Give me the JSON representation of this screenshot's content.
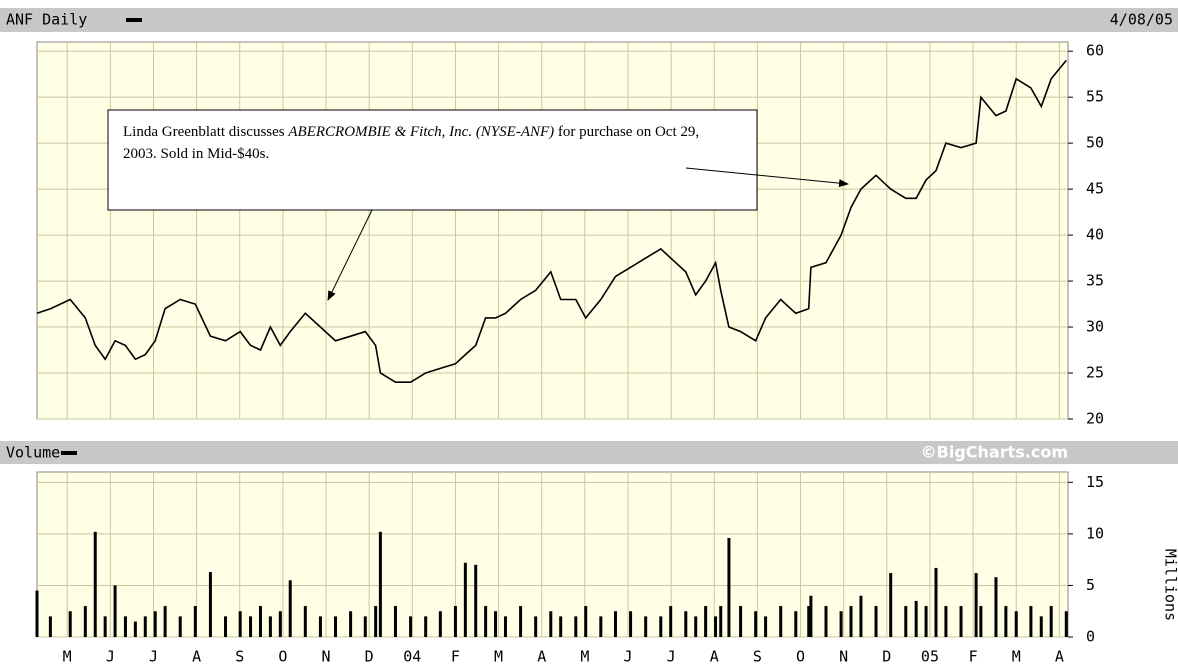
{
  "chart_data": [
    {
      "type": "line",
      "title": "ANF Daily",
      "date": "4/08/05",
      "color": "#000000",
      "annotation": [
        "Linda Greenblatt discusses ",
        "ABERCROMBIE & Fitch, Inc. (NYSE-ANF)",
        " for purchase on Oct 29, 2003.   Sold in Mid-$40s."
      ],
      "xlim": [
        -0.7,
        23.2
      ],
      "x": [
        -0.7,
        -0.39,
        0.07,
        0.42,
        0.65,
        0.88,
        1.11,
        1.35,
        1.58,
        1.81,
        2.04,
        2.27,
        2.62,
        2.97,
        3.32,
        3.67,
        4.01,
        4.25,
        4.48,
        4.71,
        4.94,
        5.17,
        5.52,
        5.87,
        6.22,
        6.57,
        6.91,
        7.15,
        7.26,
        7.61,
        7.96,
        8.31,
        8.65,
        9.0,
        9.23,
        9.47,
        9.7,
        9.93,
        10.16,
        10.51,
        10.86,
        11.21,
        11.44,
        11.79,
        12.02,
        12.37,
        12.71,
        13.06,
        13.41,
        13.76,
        13.99,
        14.34,
        14.57,
        14.8,
        15.03,
        15.15,
        15.34,
        15.61,
        15.96,
        16.19,
        16.54,
        16.89,
        17.19,
        17.24,
        17.59,
        17.94,
        18.17,
        18.4,
        18.75,
        19.09,
        19.44,
        19.68,
        19.91,
        20.14,
        20.37,
        20.72,
        21.07,
        21.18,
        21.53,
        21.76,
        22.0,
        22.34,
        22.58,
        22.81,
        23.16
      ],
      "values": [
        31.5,
        32,
        33,
        31,
        28,
        26.5,
        28.5,
        28,
        26.5,
        27,
        28.5,
        32,
        33,
        32.5,
        29,
        28.5,
        29.5,
        28,
        27.5,
        30,
        28,
        29.5,
        31.5,
        30,
        28.5,
        29,
        29.5,
        28,
        25,
        24,
        24,
        25,
        25.5,
        26,
        27,
        28,
        31,
        31,
        31.5,
        33,
        34,
        36,
        33,
        33,
        31,
        33,
        35.5,
        36.5,
        37.5,
        38.5,
        37.5,
        36,
        33.5,
        35,
        37,
        34,
        30,
        29.5,
        28.5,
        31,
        33,
        31.5,
        32,
        36.5,
        37,
        40,
        43,
        45,
        46.5,
        45,
        44,
        44,
        46,
        47,
        50,
        49.5,
        50,
        55,
        53,
        53.5,
        57,
        56,
        54,
        57,
        59
      ],
      "ylim": [
        20,
        61
      ],
      "yticks": [
        20,
        25,
        30,
        35,
        40,
        45,
        50,
        55,
        60
      ]
    },
    {
      "type": "bar",
      "title": "Volume",
      "source": "©BigCharts.com",
      "y_label": "Millions",
      "color": "#000000",
      "xlim": [
        -0.7,
        23.2
      ],
      "xticks": [
        {
          "value": 0,
          "label": "M"
        },
        {
          "value": 1,
          "label": "J"
        },
        {
          "value": 2,
          "label": "J"
        },
        {
          "value": 3,
          "label": "A"
        },
        {
          "value": 4,
          "label": "S"
        },
        {
          "value": 5,
          "label": "O"
        },
        {
          "value": 6,
          "label": "N"
        },
        {
          "value": 7,
          "label": "D"
        },
        {
          "value": 8,
          "label": "04"
        },
        {
          "value": 9,
          "label": "F"
        },
        {
          "value": 10,
          "label": "M"
        },
        {
          "value": 11,
          "label": "A"
        },
        {
          "value": 12,
          "label": "M"
        },
        {
          "value": 13,
          "label": "J"
        },
        {
          "value": 14,
          "label": "J"
        },
        {
          "value": 15,
          "label": "A"
        },
        {
          "value": 16,
          "label": "S"
        },
        {
          "value": 17,
          "label": "O"
        },
        {
          "value": 18,
          "label": "N"
        },
        {
          "value": 19,
          "label": "D"
        },
        {
          "value": 20,
          "label": "05"
        },
        {
          "value": 21,
          "label": "F"
        },
        {
          "value": 22,
          "label": "M"
        },
        {
          "value": 23,
          "label": "A"
        }
      ],
      "x": [
        -0.7,
        -0.39,
        0.07,
        0.42,
        0.65,
        0.88,
        1.11,
        1.35,
        1.58,
        1.81,
        2.04,
        2.27,
        2.62,
        2.97,
        3.32,
        3.67,
        4.01,
        4.25,
        4.48,
        4.71,
        4.94,
        5.17,
        5.52,
        5.87,
        6.22,
        6.57,
        6.91,
        7.15,
        7.26,
        7.61,
        7.96,
        8.31,
        8.65,
        9.0,
        9.23,
        9.47,
        9.7,
        9.93,
        10.16,
        10.51,
        10.86,
        11.21,
        11.44,
        11.79,
        12.02,
        12.37,
        12.71,
        13.06,
        13.41,
        13.76,
        13.99,
        14.34,
        14.57,
        14.8,
        15.03,
        15.15,
        15.34,
        15.61,
        15.96,
        16.19,
        16.54,
        16.89,
        17.19,
        17.24,
        17.59,
        17.94,
        18.17,
        18.4,
        18.75,
        19.09,
        19.44,
        19.68,
        19.91,
        20.14,
        20.37,
        20.72,
        21.07,
        21.18,
        21.53,
        21.76,
        22.0,
        22.34,
        22.58,
        22.81,
        23.16
      ],
      "values": [
        4.5,
        2,
        2.5,
        3,
        10.2,
        2,
        5,
        2,
        1.5,
        2,
        2.5,
        3,
        2,
        3,
        6.3,
        2,
        2.5,
        2,
        3,
        2,
        2.5,
        5.5,
        3,
        2,
        2,
        2.5,
        2,
        3,
        10.2,
        3,
        2,
        2,
        2.5,
        3,
        7.2,
        7,
        3,
        2.5,
        2,
        3,
        2,
        2.5,
        2,
        2,
        3,
        2,
        2.5,
        2.5,
        2,
        2,
        3,
        2.5,
        2,
        3,
        2,
        3,
        9.6,
        3,
        2.5,
        2,
        3,
        2.5,
        3,
        4,
        3,
        2.5,
        3,
        4,
        3,
        6.2,
        3,
        3.5,
        3,
        6.7,
        3,
        3,
        6.2,
        3,
        5.8,
        3,
        2.5,
        3,
        2,
        3,
        2.5
      ],
      "ylim": [
        0,
        16
      ],
      "yticks": [
        0,
        5,
        10,
        15
      ]
    }
  ]
}
